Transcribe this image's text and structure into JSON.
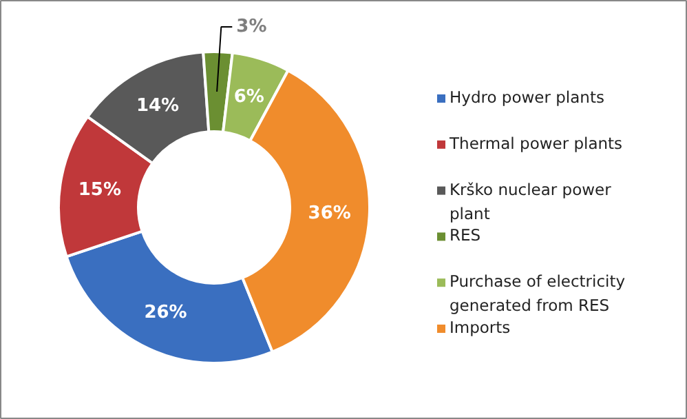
{
  "chart_data": {
    "type": "donut",
    "categories": [
      "Hydro power plants",
      "Thermal power plants",
      "Krško nuclear power plant",
      "RES",
      "Purchase of electricity generated from RES",
      "Imports"
    ],
    "values": [
      26,
      15,
      14,
      3,
      6,
      36
    ],
    "colors": [
      "#3a6fc0",
      "#c0383a",
      "#595959",
      "#6b8f32",
      "#9bbb59",
      "#f08c2c"
    ],
    "value_labels": [
      "26%",
      "15%",
      "14%",
      "3%",
      "6%",
      "36%"
    ],
    "legend": "right"
  }
}
